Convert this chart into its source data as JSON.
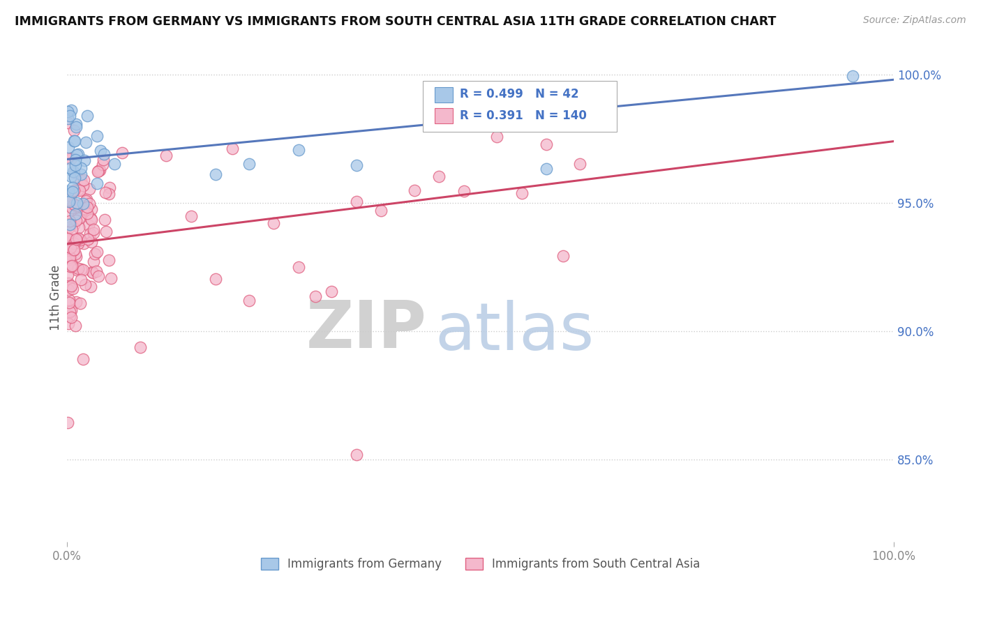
{
  "title": "IMMIGRANTS FROM GERMANY VS IMMIGRANTS FROM SOUTH CENTRAL ASIA 11TH GRADE CORRELATION CHART",
  "source": "Source: ZipAtlas.com",
  "ylabel": "11th Grade",
  "x_min": 0.0,
  "x_max": 1.0,
  "y_min": 0.818,
  "y_max": 1.008,
  "x_tick_labels": [
    "0.0%",
    "100.0%"
  ],
  "y_tick_labels": [
    "85.0%",
    "90.0%",
    "95.0%",
    "100.0%"
  ],
  "y_tick_values": [
    0.85,
    0.9,
    0.95,
    1.0
  ],
  "r_germany": 0.499,
  "n_germany": 42,
  "r_asia": 0.391,
  "n_asia": 140,
  "germany_fill_color": "#a8c8e8",
  "germany_edge_color": "#6699cc",
  "asia_fill_color": "#f4b8cc",
  "asia_edge_color": "#e06080",
  "germany_line_color": "#5577bb",
  "asia_line_color": "#cc4466",
  "watermark_zip_color": "#cccccc",
  "watermark_atlas_color": "#b8cce4",
  "background_color": "#ffffff",
  "grid_color": "#cccccc",
  "tick_color": "#4472c4",
  "xtick_color": "#888888",
  "legend_text_color": "#4472c4"
}
